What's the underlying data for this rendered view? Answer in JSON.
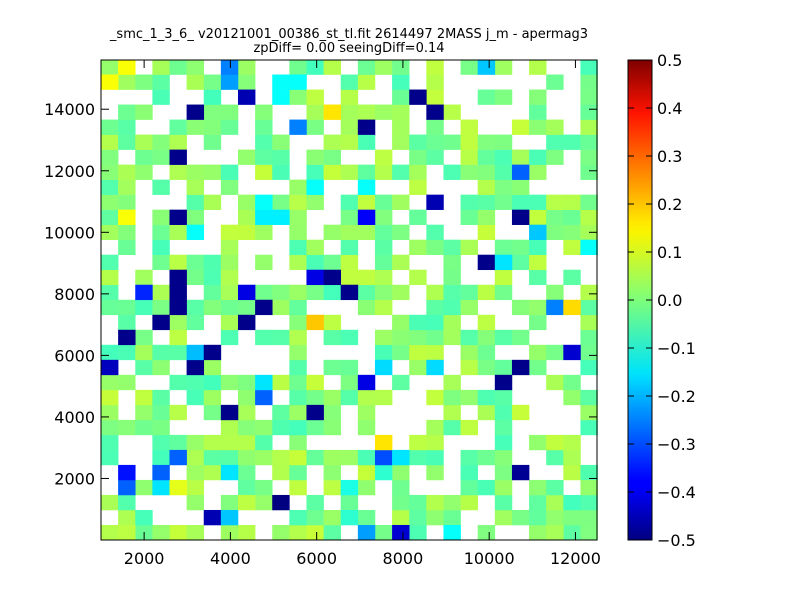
{
  "chart_data": {
    "type": "heatmap",
    "title": "_smc_1_3_6_ v20121001_00386_st_tl.fit 2614497 2MASS j_m - apermag3",
    "subtitle": "zpDiff= 0.00 seeingDiff=0.14",
    "xlim": [
      1000,
      12500
    ],
    "ylim": [
      0,
      15600
    ],
    "x_ticks": [
      2000,
      4000,
      6000,
      8000,
      10000,
      12000
    ],
    "y_ticks": [
      2000,
      4000,
      6000,
      8000,
      10000,
      12000,
      14000
    ],
    "colorbar": {
      "colormap": "jet",
      "range": [
        -0.5,
        0.5
      ],
      "ticks": [
        "0.5",
        "0.4",
        "0.3",
        "0.2",
        "0.1",
        "0.0",
        "−0.1",
        "−0.2",
        "−0.3",
        "−0.4",
        "−0.5"
      ]
    },
    "cell_grid": {
      "x0": 1000,
      "y0": 0,
      "nx": 29,
      "ny": 32,
      "cell_w": 397,
      "cell_h": 488
    },
    "cells": [
      {
        "x": 1200,
        "y": 244,
        "v": 0.05
      },
      {
        "x": 1597,
        "y": 244,
        "v": 0.06
      },
      {
        "x": 2391,
        "y": 244,
        "v": 0.02
      },
      {
        "x": 3185,
        "y": 244,
        "v": 0.04
      },
      {
        "x": 3979,
        "y": 244,
        "v": 0.03
      },
      {
        "x": 5170,
        "y": 244,
        "v": 0.02
      },
      {
        "x": 5567,
        "y": 244,
        "v": 0.05
      },
      {
        "x": 7155,
        "y": 244,
        "v": -0.22
      },
      {
        "x": 7949,
        "y": 244,
        "v": -0.42
      },
      {
        "x": 9140,
        "y": 244,
        "v": -0.12
      },
      {
        "x": 9934,
        "y": 244,
        "v": 0.0
      },
      {
        "x": 11522,
        "y": 244,
        "v": 0.04
      },
      {
        "x": 12316,
        "y": 244,
        "v": 0.0
      },
      {
        "x": 3582,
        "y": 732,
        "v": -0.45
      },
      {
        "x": 3979,
        "y": 732,
        "v": -0.18
      },
      {
        "x": 6758,
        "y": 732,
        "v": -0.08
      },
      {
        "x": 5567,
        "y": 732,
        "v": -0.05
      },
      {
        "x": 5170,
        "y": 1220,
        "v": -0.5
      },
      {
        "x": 4376,
        "y": 1220,
        "v": 0.06
      },
      {
        "x": 3185,
        "y": 1220,
        "v": 0.02
      },
      {
        "x": 1597,
        "y": 1708,
        "v": -0.28
      },
      {
        "x": 2391,
        "y": 1708,
        "v": -0.15
      },
      {
        "x": 2788,
        "y": 1708,
        "v": 0.1
      },
      {
        "x": 6758,
        "y": 1708,
        "v": -0.1
      },
      {
        "x": 12316,
        "y": 1708,
        "v": 0.02
      },
      {
        "x": 1597,
        "y": 2196,
        "v": -0.36
      },
      {
        "x": 2391,
        "y": 2196,
        "v": -0.28
      },
      {
        "x": 3979,
        "y": 2196,
        "v": -0.15
      },
      {
        "x": 7552,
        "y": 2196,
        "v": -0.08
      },
      {
        "x": 10728,
        "y": 2196,
        "v": -0.48
      },
      {
        "x": 2788,
        "y": 2684,
        "v": -0.28
      },
      {
        "x": 7552,
        "y": 2684,
        "v": -0.3
      },
      {
        "x": 7949,
        "y": 2684,
        "v": -0.15
      },
      {
        "x": 7552,
        "y": 3172,
        "v": 0.15
      },
      {
        "x": 3582,
        "y": 3172,
        "v": 0.05
      },
      {
        "x": 3979,
        "y": 4148,
        "v": -0.49
      },
      {
        "x": 5964,
        "y": 4148,
        "v": -0.49
      },
      {
        "x": 4773,
        "y": 4636,
        "v": -0.28
      },
      {
        "x": 4773,
        "y": 5124,
        "v": -0.15
      },
      {
        "x": 7155,
        "y": 5124,
        "v": -0.4
      },
      {
        "x": 10331,
        "y": 5124,
        "v": -0.49
      },
      {
        "x": 1200,
        "y": 5612,
        "v": -0.44
      },
      {
        "x": 3185,
        "y": 5612,
        "v": -0.49
      },
      {
        "x": 7552,
        "y": 5612,
        "v": -0.16
      },
      {
        "x": 8743,
        "y": 5612,
        "v": -0.16
      },
      {
        "x": 10728,
        "y": 5612,
        "v": -0.49
      },
      {
        "x": 3185,
        "y": 6100,
        "v": -0.19
      },
      {
        "x": 3582,
        "y": 6100,
        "v": -0.49
      },
      {
        "x": 11919,
        "y": 6100,
        "v": -0.42
      },
      {
        "x": 1597,
        "y": 6588,
        "v": -0.49
      },
      {
        "x": 2391,
        "y": 7076,
        "v": -0.49
      },
      {
        "x": 4376,
        "y": 7076,
        "v": -0.49
      },
      {
        "x": 5964,
        "y": 7076,
        "v": 0.18
      },
      {
        "x": 4773,
        "y": 7564,
        "v": -0.49
      },
      {
        "x": 2788,
        "y": 7564,
        "v": -0.49
      },
      {
        "x": 11522,
        "y": 7564,
        "v": -0.25
      },
      {
        "x": 11919,
        "y": 7564,
        "v": 0.16
      },
      {
        "x": 1994,
        "y": 8052,
        "v": -0.34
      },
      {
        "x": 2788,
        "y": 8052,
        "v": -0.49
      },
      {
        "x": 4376,
        "y": 8052,
        "v": -0.4
      },
      {
        "x": 6758,
        "y": 8052,
        "v": -0.49
      },
      {
        "x": 2788,
        "y": 8540,
        "v": -0.49
      },
      {
        "x": 5964,
        "y": 8540,
        "v": -0.4
      },
      {
        "x": 6361,
        "y": 8540,
        "v": -0.49
      },
      {
        "x": 9934,
        "y": 9028,
        "v": -0.49
      },
      {
        "x": 10331,
        "y": 9028,
        "v": -0.15
      },
      {
        "x": 12316,
        "y": 9516,
        "v": -0.12
      },
      {
        "x": 3185,
        "y": 10004,
        "v": -0.12
      },
      {
        "x": 11125,
        "y": 10004,
        "v": -0.18
      },
      {
        "x": 1597,
        "y": 10492,
        "v": 0.12
      },
      {
        "x": 2788,
        "y": 10492,
        "v": -0.49
      },
      {
        "x": 4773,
        "y": 10492,
        "v": -0.14
      },
      {
        "x": 5170,
        "y": 10492,
        "v": -0.14
      },
      {
        "x": 7155,
        "y": 10492,
        "v": -0.38
      },
      {
        "x": 10728,
        "y": 10492,
        "v": -0.49
      },
      {
        "x": 4773,
        "y": 10980,
        "v": -0.12
      },
      {
        "x": 8743,
        "y": 10980,
        "v": -0.45
      },
      {
        "x": 5964,
        "y": 11468,
        "v": -0.12
      },
      {
        "x": 7155,
        "y": 11468,
        "v": -0.12
      },
      {
        "x": 10728,
        "y": 11956,
        "v": -0.28
      },
      {
        "x": 2788,
        "y": 12444,
        "v": -0.49
      },
      {
        "x": 6758,
        "y": 12932,
        "v": 0.05
      },
      {
        "x": 5567,
        "y": 13420,
        "v": -0.25
      },
      {
        "x": 7155,
        "y": 13420,
        "v": -0.49
      },
      {
        "x": 3185,
        "y": 13908,
        "v": -0.49
      },
      {
        "x": 6361,
        "y": 13908,
        "v": 0.15
      },
      {
        "x": 8743,
        "y": 13908,
        "v": -0.49
      },
      {
        "x": 4376,
        "y": 14396,
        "v": -0.45
      },
      {
        "x": 8346,
        "y": 14396,
        "v": -0.49
      },
      {
        "x": 5170,
        "y": 14396,
        "v": -0.12
      },
      {
        "x": 1200,
        "y": 14884,
        "v": 0.12
      },
      {
        "x": 3979,
        "y": 14884,
        "v": -0.22
      },
      {
        "x": 5170,
        "y": 14884,
        "v": -0.12
      },
      {
        "x": 5567,
        "y": 14884,
        "v": -0.12
      },
      {
        "x": 3979,
        "y": 15372,
        "v": -0.25
      },
      {
        "x": 1597,
        "y": 15372,
        "v": 0.12
      },
      {
        "x": 9934,
        "y": 15372,
        "v": -0.18
      },
      {
        "x": 11125,
        "y": 15372,
        "v": 0.05
      }
    ],
    "background_fill": {
      "pattern_seed": 7,
      "density": 0.6,
      "v_range": [
        -0.06,
        0.07
      ]
    },
    "grid": false,
    "legend": "none"
  }
}
